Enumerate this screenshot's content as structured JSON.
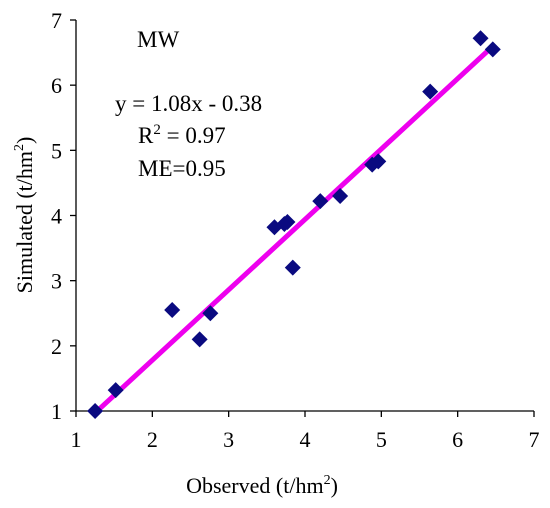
{
  "chart_data": {
    "type": "scatter",
    "title": "MW",
    "xlabel": "Observed (t/hm",
    "xlabel_sup": "2",
    "xlabel_close": ")",
    "ylabel": "Simulated (t/hm",
    "ylabel_sup": "2",
    "ylabel_close": ")",
    "xlim": [
      1,
      7
    ],
    "ylim": [
      1,
      7
    ],
    "xticks": [
      "1",
      "2",
      "3",
      "4",
      "5",
      "6",
      "7"
    ],
    "yticks": [
      "1",
      "2",
      "3",
      "4",
      "5",
      "6",
      "7"
    ],
    "grid": false,
    "points": [
      {
        "x": 1.25,
        "y": 1.0
      },
      {
        "x": 1.52,
        "y": 1.32
      },
      {
        "x": 2.26,
        "y": 2.55
      },
      {
        "x": 2.62,
        "y": 2.1
      },
      {
        "x": 2.76,
        "y": 2.5
      },
      {
        "x": 3.6,
        "y": 3.82
      },
      {
        "x": 3.73,
        "y": 3.87
      },
      {
        "x": 3.77,
        "y": 3.9
      },
      {
        "x": 3.84,
        "y": 3.2
      },
      {
        "x": 4.2,
        "y": 4.22
      },
      {
        "x": 4.46,
        "y": 4.3
      },
      {
        "x": 4.88,
        "y": 4.78
      },
      {
        "x": 4.96,
        "y": 4.83
      },
      {
        "x": 5.64,
        "y": 5.9
      },
      {
        "x": 6.3,
        "y": 6.72
      },
      {
        "x": 6.46,
        "y": 6.55
      }
    ],
    "fit": {
      "slope": 1.08,
      "intercept": -0.38,
      "x_range": [
        1.25,
        6.46
      ]
    },
    "annotations": {
      "equation": "y = 1.08x - 0.38",
      "r2_label": "R",
      "r2_sup": "2",
      "r2_value": " = 0.97",
      "me": "ME=0.95"
    },
    "colors": {
      "points": "#0a0a80",
      "fit_line": "#ee00ee",
      "axis": "#000000"
    }
  }
}
